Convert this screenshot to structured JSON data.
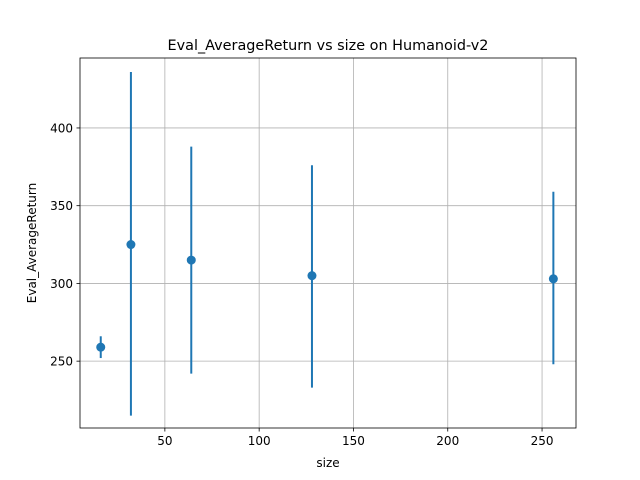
{
  "chart_data": {
    "type": "scatter",
    "title": "Eval_AverageReturn vs size on Humanoid-v2",
    "xlabel": "size",
    "ylabel": "Eval_AverageReturn",
    "xlim": [
      5,
      268
    ],
    "ylim": [
      207,
      445
    ],
    "xticks": [
      50,
      100,
      150,
      200,
      250
    ],
    "yticks": [
      250,
      300,
      350,
      400
    ],
    "grid": true,
    "color": "#1f77b4",
    "series": [
      {
        "x": [
          16,
          32,
          64,
          128,
          256
        ],
        "y": [
          259,
          325,
          315,
          305,
          303
        ],
        "err_low": [
          252,
          215,
          242,
          233,
          248
        ],
        "err_high": [
          266,
          436,
          388,
          376,
          359
        ]
      }
    ]
  }
}
